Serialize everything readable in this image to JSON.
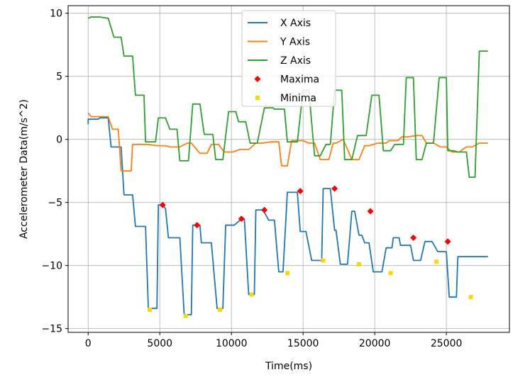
{
  "chart_data": {
    "type": "line",
    "xlabel": "Time(ms)",
    "ylabel": "Accelerometer Data(m/s^2)",
    "xlim": [
      -1400,
      29400
    ],
    "ylim": [
      -15.3,
      10.6
    ],
    "xticks": [
      0,
      5000,
      10000,
      15000,
      20000,
      25000
    ],
    "xtick_labels": [
      "0",
      "5000",
      "10000",
      "15000",
      "20000",
      "25000"
    ],
    "yticks": [
      -15,
      -10,
      -5,
      0,
      5,
      10
    ],
    "ytick_labels": [
      "−15",
      "−10",
      "−5",
      "0",
      "5",
      "10"
    ],
    "grid": true,
    "legend_placement": "upper-center",
    "series": [
      {
        "name": "X Axis",
        "color": "#1f77b4",
        "kind": "line",
        "x": [
          0,
          0,
          200,
          700,
          800,
          1400,
          1600,
          2100,
          2300,
          2500,
          2600,
          3100,
          3300,
          3300,
          3800,
          4000,
          4200,
          4400,
          4400,
          4800,
          4900,
          5200,
          5400,
          5600,
          5800,
          6400,
          6700,
          6700,
          7200,
          7300,
          7500,
          7800,
          7900,
          8400,
          8600,
          9000,
          9200,
          9400,
          9600,
          10100,
          10200,
          10500,
          10700,
          10900,
          11200,
          11600,
          11700,
          12200,
          12300,
          12600,
          12800,
          13000,
          13300,
          13600,
          13900,
          14100,
          14500,
          14600,
          14800,
          15000,
          15200,
          15600,
          16000,
          16300,
          16400,
          16700,
          16900,
          17200,
          17300,
          17600,
          17800,
          18100,
          18400,
          18600,
          18900,
          19100,
          19300,
          19600,
          19900,
          20100,
          20500,
          20800,
          20900,
          21200,
          21300,
          21700,
          21800,
          22300,
          22500,
          22700,
          22900,
          23200,
          23500,
          23800,
          24000,
          24400,
          24500,
          24700,
          25000,
          25200,
          25300,
          25700,
          25800,
          26300,
          26600,
          26800,
          27100,
          27300,
          27900
        ],
        "y": [
          1.2,
          1.6,
          1.6,
          1.6,
          1.7,
          1.7,
          -0.6,
          -0.6,
          -0.6,
          -4.4,
          -4.4,
          -4.4,
          -6.9,
          -6.9,
          -6.9,
          -6.9,
          -13.4,
          -13.4,
          -13.4,
          -13.4,
          -5.2,
          -5.2,
          -5.5,
          -7.8,
          -7.8,
          -7.8,
          -13.9,
          -13.9,
          -13.9,
          -6.8,
          -6.8,
          -6.8,
          -8.2,
          -8.2,
          -8.2,
          -13.4,
          -13.4,
          -13.4,
          -6.8,
          -6.8,
          -6.8,
          -6.5,
          -6.3,
          -6.3,
          -12.3,
          -12.3,
          -5.6,
          -5.6,
          -5.8,
          -6.4,
          -6.4,
          -6.4,
          -10.5,
          -10.5,
          -4.2,
          -4.2,
          -4.2,
          -4.2,
          -7.3,
          -7.3,
          -7.3,
          -9.6,
          -9.6,
          -9.6,
          -3.9,
          -3.9,
          -3.9,
          -7.2,
          -7.2,
          -9.9,
          -9.9,
          -9.9,
          -5.7,
          -5.7,
          -7.6,
          -7.6,
          -8.2,
          -8.2,
          -10.5,
          -10.5,
          -10.5,
          -8.6,
          -8.6,
          -8.6,
          -7.8,
          -7.8,
          -8.4,
          -8.4,
          -8.4,
          -9.6,
          -9.6,
          -9.6,
          -8.1,
          -8.1,
          -8.1,
          -8.9,
          -8.9,
          -8.9,
          -8.9,
          -12.5,
          -12.5,
          -12.5,
          -9.3,
          -9.3,
          -9.3,
          -9.3,
          -9.3,
          -9.3,
          -9.3
        ]
      },
      {
        "name": "Y Axis",
        "color": "#ff7f0e",
        "kind": "line",
        "x": [
          0,
          200,
          800,
          1400,
          1700,
          2100,
          2300,
          2600,
          3000,
          3100,
          3300,
          4200,
          4800,
          5400,
          5700,
          6400,
          6900,
          7200,
          7800,
          8300,
          8600,
          9100,
          9500,
          10100,
          10600,
          11200,
          11700,
          12200,
          12700,
          13300,
          13500,
          13900,
          14200,
          14500,
          15000,
          15400,
          15800,
          16200,
          16800,
          17100,
          17300,
          17800,
          18400,
          18900,
          19300,
          19600,
          20200,
          20800,
          21000,
          21600,
          21900,
          22300,
          22900,
          23300,
          23600,
          24100,
          24600,
          25000,
          25400,
          25900,
          26400,
          26800,
          27300,
          27900
        ],
        "y": [
          2.1,
          1.8,
          1.8,
          1.8,
          0.8,
          0.8,
          -2.5,
          -2.5,
          -2.5,
          -0.4,
          -0.4,
          -0.4,
          -0.5,
          -0.5,
          -0.6,
          -0.6,
          -0.3,
          -0.3,
          -1.1,
          -1.1,
          -0.4,
          -0.4,
          -1.0,
          -1.0,
          -0.8,
          -0.8,
          -0.3,
          -0.3,
          -0.2,
          -0.2,
          -2.1,
          -2.1,
          -0.1,
          -0.1,
          -0.1,
          -0.3,
          -0.3,
          -1.6,
          -1.6,
          -0.3,
          -0.3,
          -0.0,
          -1.6,
          -1.6,
          -0.5,
          -0.5,
          -0.3,
          -0.3,
          -0.1,
          -0.1,
          0.2,
          0.2,
          0.3,
          0.3,
          -0.3,
          -0.3,
          -0.6,
          -0.6,
          -1.0,
          -1.0,
          -0.6,
          -0.6,
          -0.3,
          -0.3
        ]
      },
      {
        "name": "Z Axis",
        "color": "#2ca02c",
        "kind": "line",
        "x": [
          0,
          200,
          800,
          1400,
          1800,
          2300,
          2500,
          3100,
          3300,
          3900,
          4000,
          4700,
          4900,
          5400,
          5700,
          6200,
          6400,
          7000,
          7300,
          7800,
          8100,
          8700,
          8900,
          9400,
          9800,
          10300,
          10500,
          11000,
          11300,
          11800,
          12300,
          12900,
          13000,
          13700,
          13900,
          14600,
          15000,
          15400,
          15800,
          16200,
          16600,
          16900,
          17200,
          17700,
          17900,
          18400,
          18800,
          19400,
          19800,
          20300,
          20600,
          21100,
          21400,
          22000,
          22200,
          22700,
          22900,
          23300,
          23600,
          24100,
          24500,
          25000,
          25100,
          25500,
          25800,
          26400,
          26600,
          27000,
          27300,
          27900
        ],
        "y": [
          9.6,
          9.7,
          9.7,
          9.6,
          8.1,
          8.1,
          6.6,
          6.6,
          3.5,
          3.5,
          -0.2,
          -0.2,
          1.7,
          1.7,
          0.8,
          0.8,
          -1.7,
          -1.7,
          2.8,
          2.8,
          0.4,
          0.4,
          -1.6,
          -1.6,
          2.2,
          2.2,
          1.4,
          1.4,
          -0.3,
          -0.3,
          2.5,
          2.5,
          2.4,
          2.4,
          -0.2,
          -0.2,
          3.9,
          3.9,
          -1.3,
          -1.3,
          -0.4,
          -0.4,
          3.9,
          3.9,
          -1.6,
          -1.6,
          0.3,
          0.3,
          3.5,
          3.5,
          -0.9,
          -0.9,
          -0.4,
          -0.4,
          4.9,
          4.9,
          -1.6,
          -1.6,
          -0.3,
          -0.3,
          4.9,
          4.9,
          -0.9,
          -0.9,
          -1.0,
          -1.0,
          -3.0,
          -3.0,
          7.0,
          7.0
        ]
      }
    ],
    "markers": [
      {
        "name": "Maxima",
        "color": "#ff0000",
        "shape": "diamond",
        "x": [
          5200,
          7600,
          10700,
          12300,
          14800,
          17200,
          19700,
          22700,
          25100
        ],
        "y": [
          -5.2,
          -6.8,
          -6.3,
          -5.6,
          -4.1,
          -3.9,
          -5.7,
          -7.8,
          -8.1
        ]
      },
      {
        "name": "Minima",
        "color": "#ffd700",
        "shape": "square",
        "x": [
          4300,
          6800,
          9200,
          11400,
          13900,
          16400,
          18900,
          21100,
          24300,
          26700
        ],
        "y": [
          -13.5,
          -14.0,
          -13.5,
          -12.3,
          -10.6,
          -9.6,
          -9.9,
          -10.6,
          -9.7,
          -12.5
        ]
      }
    ]
  }
}
